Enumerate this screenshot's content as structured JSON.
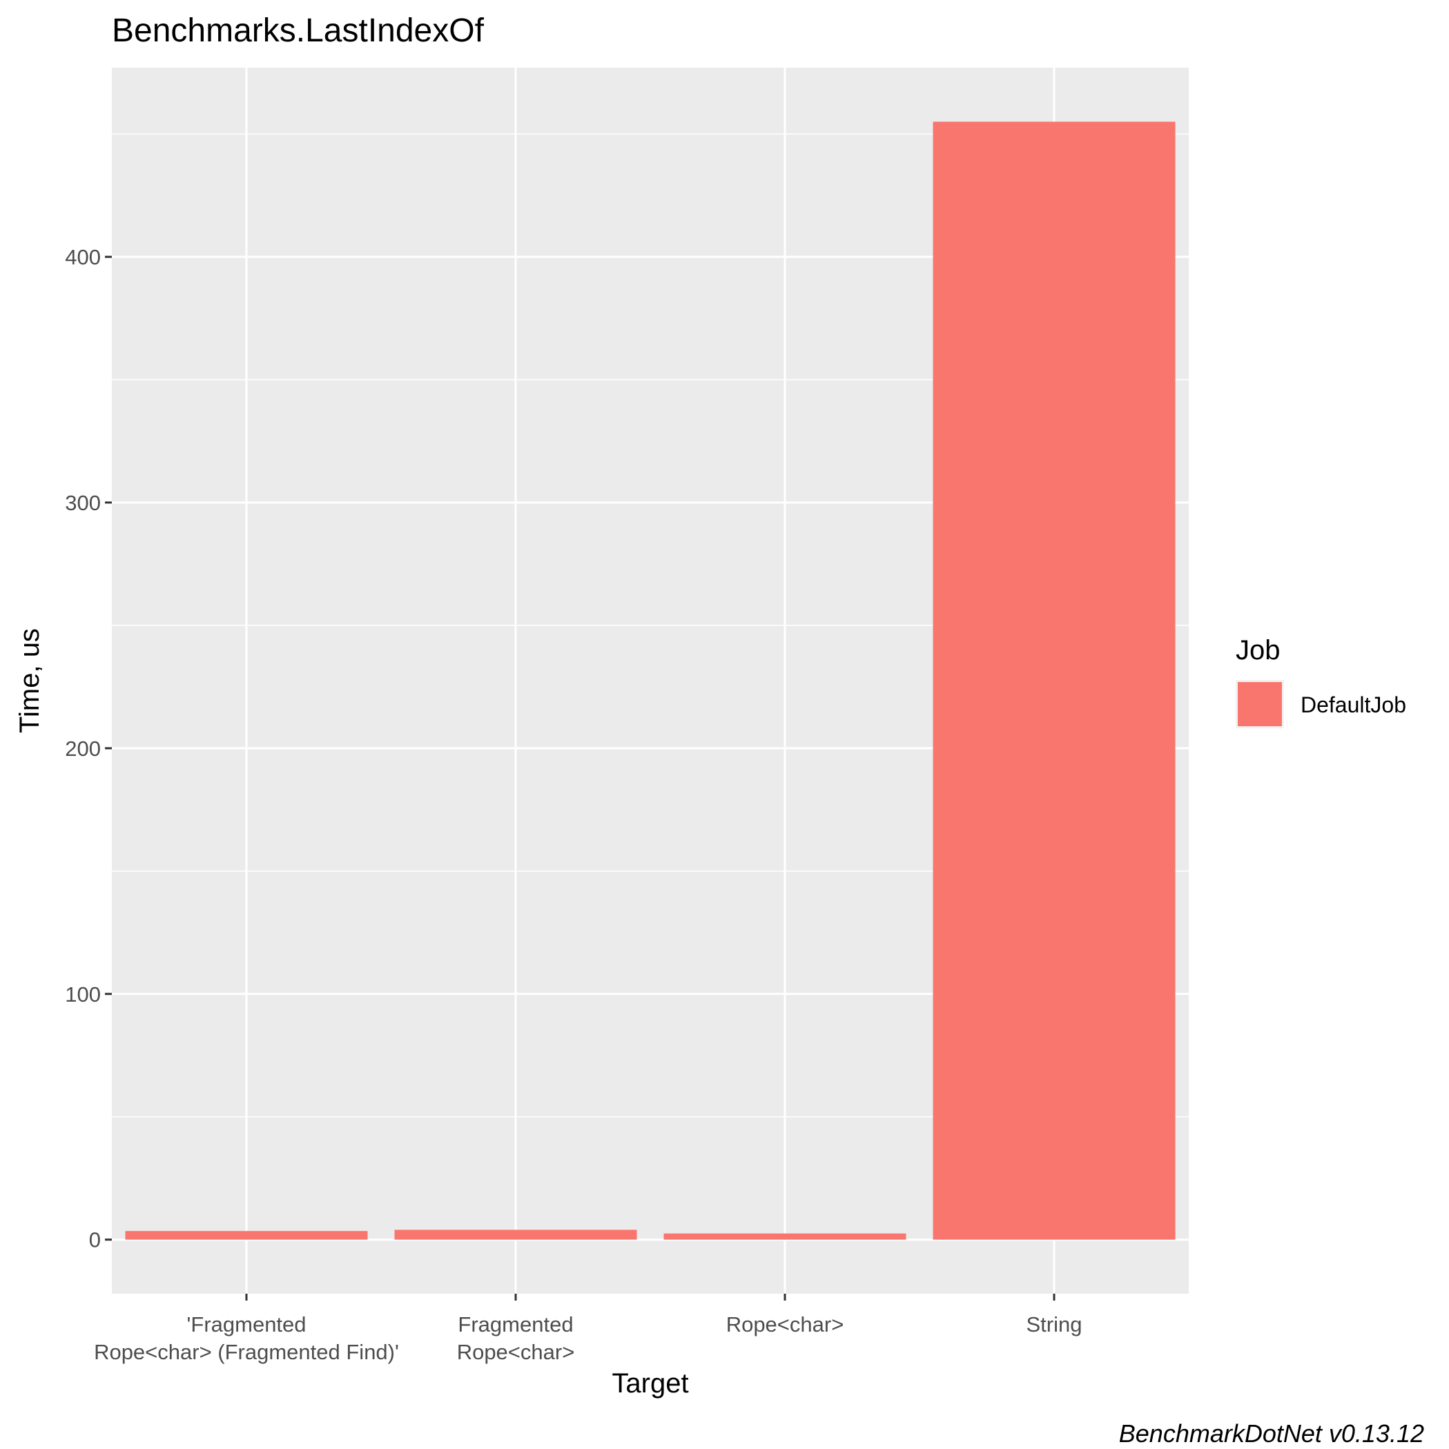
{
  "chart_data": {
    "type": "bar",
    "title": "Benchmarks.LastIndexOf",
    "xlabel": "Target",
    "ylabel": "Time, us",
    "categories": [
      [
        "'Fragmented",
        "Rope<char> (Fragmented Find)'"
      ],
      [
        "Fragmented",
        "Rope<char>"
      ],
      [
        "Rope<char>"
      ],
      [
        "String"
      ]
    ],
    "series": [
      {
        "name": "DefaultJob",
        "color": "#f8766d",
        "values": [
          3.5,
          4.0,
          2.5,
          455
        ]
      }
    ],
    "ylim": [
      -22,
      477
    ],
    "yticks": [
      0,
      100,
      200,
      300,
      400
    ],
    "grid": true,
    "panel_background": "#ebebeb",
    "legend": {
      "title": "Job",
      "position": "right"
    },
    "caption": "BenchmarkDotNet v0.13.12"
  }
}
